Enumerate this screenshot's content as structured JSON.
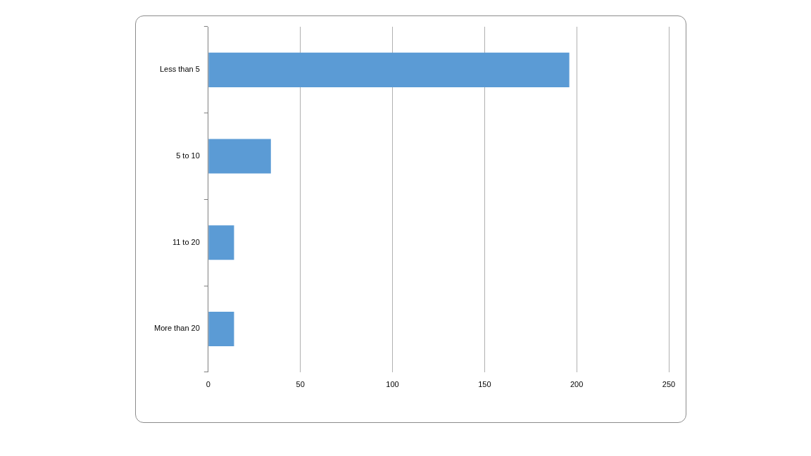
{
  "chart_data": {
    "type": "bar",
    "orientation": "horizontal",
    "categories": [
      "Less than 5",
      "5 to 10",
      "11 to 20",
      "More than 20"
    ],
    "values": [
      196,
      34,
      14,
      14
    ],
    "color": "#5b9bd5",
    "xlim": [
      0,
      250
    ],
    "xticks": [
      0,
      50,
      100,
      150,
      200,
      250
    ],
    "grid": true
  }
}
